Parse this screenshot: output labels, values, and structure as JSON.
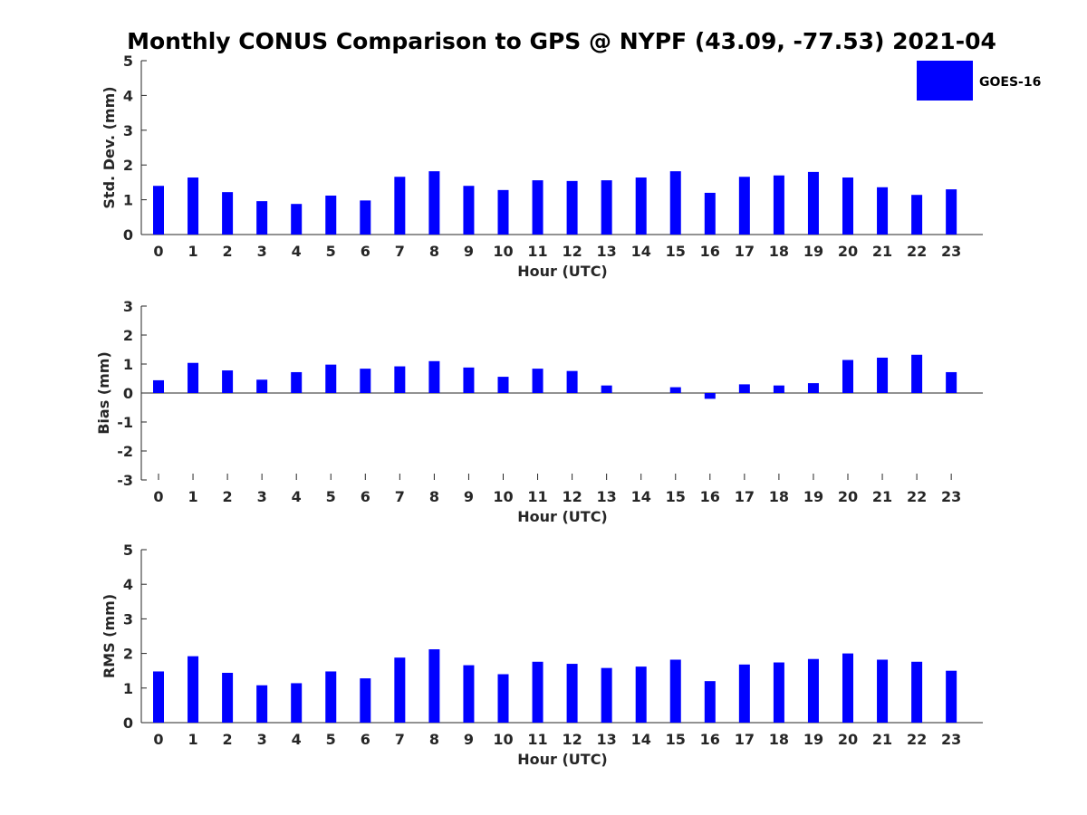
{
  "title": "Monthly CONUS Comparison to GPS @ NYPF (43.09, -77.53) 2021-04",
  "bar_color": "#0000ff",
  "legend": {
    "label": "GOES-16",
    "placement": "top-right"
  },
  "chart_data": [
    {
      "type": "bar",
      "xlabel": "Hour (UTC)",
      "ylabel": "Std. Dev. (mm)",
      "ylim": [
        0,
        5
      ],
      "yticks": [
        0,
        1,
        2,
        3,
        4,
        5
      ],
      "categories": [
        "0",
        "1",
        "2",
        "3",
        "4",
        "5",
        "6",
        "7",
        "8",
        "9",
        "10",
        "11",
        "12",
        "13",
        "14",
        "15",
        "16",
        "17",
        "18",
        "19",
        "20",
        "21",
        "22",
        "23"
      ],
      "series": [
        {
          "name": "GOES-16",
          "values": [
            1.4,
            1.64,
            1.22,
            0.96,
            0.88,
            1.12,
            0.98,
            1.66,
            1.82,
            1.4,
            1.28,
            1.56,
            1.54,
            1.56,
            1.64,
            1.82,
            1.2,
            1.66,
            1.7,
            1.8,
            1.64,
            1.36,
            1.14,
            1.3
          ]
        }
      ]
    },
    {
      "type": "bar",
      "xlabel": "Hour (UTC)",
      "ylabel": "Bias (mm)",
      "ylim": [
        -3,
        3
      ],
      "yticks": [
        -3,
        -2,
        -1,
        0,
        1,
        2,
        3
      ],
      "categories": [
        "0",
        "1",
        "2",
        "3",
        "4",
        "5",
        "6",
        "7",
        "8",
        "9",
        "10",
        "11",
        "12",
        "13",
        "14",
        "15",
        "16",
        "17",
        "18",
        "19",
        "20",
        "21",
        "22",
        "23"
      ],
      "series": [
        {
          "name": "GOES-16",
          "values": [
            0.44,
            1.04,
            0.78,
            0.46,
            0.72,
            0.98,
            0.84,
            0.92,
            1.1,
            0.88,
            0.56,
            0.84,
            0.76,
            0.26,
            0.0,
            0.2,
            -0.2,
            0.3,
            0.26,
            0.34,
            1.14,
            1.22,
            1.32,
            0.72
          ]
        }
      ]
    },
    {
      "type": "bar",
      "xlabel": "Hour (UTC)",
      "ylabel": "RMS (mm)",
      "ylim": [
        0,
        5
      ],
      "yticks": [
        0,
        1,
        2,
        3,
        4,
        5
      ],
      "categories": [
        "0",
        "1",
        "2",
        "3",
        "4",
        "5",
        "6",
        "7",
        "8",
        "9",
        "10",
        "11",
        "12",
        "13",
        "14",
        "15",
        "16",
        "17",
        "18",
        "19",
        "20",
        "21",
        "22",
        "23"
      ],
      "series": [
        {
          "name": "GOES-16",
          "values": [
            1.48,
            1.92,
            1.44,
            1.08,
            1.14,
            1.48,
            1.28,
            1.88,
            2.12,
            1.66,
            1.4,
            1.76,
            1.7,
            1.58,
            1.62,
            1.82,
            1.2,
            1.68,
            1.74,
            1.84,
            2.0,
            1.82,
            1.76,
            1.5
          ]
        }
      ]
    }
  ]
}
